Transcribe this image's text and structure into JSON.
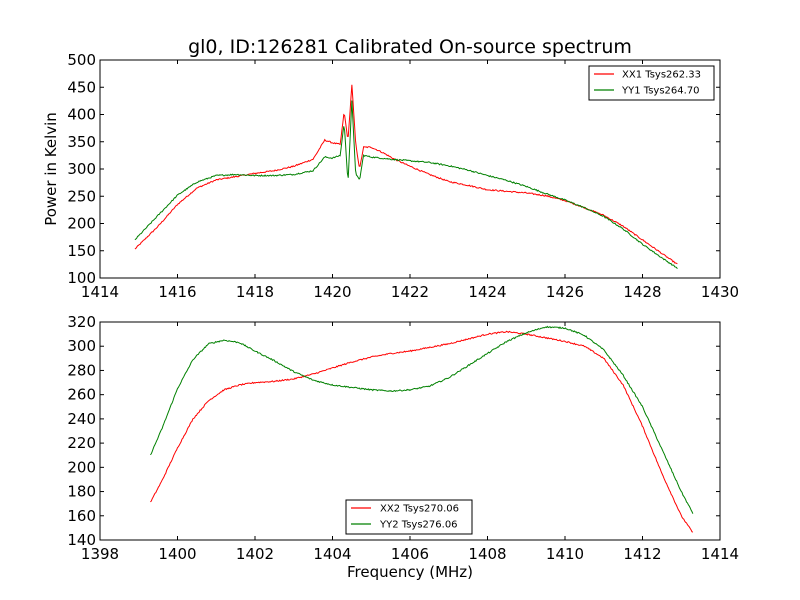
{
  "chart_data": [
    {
      "type": "line",
      "title": "gl0, ID:126281 Calibrated On-source spectrum",
      "xlabel": "",
      "ylabel": "Power in Kelvin",
      "xlim": [
        1414,
        1430
      ],
      "ylim": [
        100,
        500
      ],
      "xticks": [
        1414,
        1416,
        1418,
        1420,
        1422,
        1424,
        1426,
        1428,
        1430
      ],
      "yticks": [
        100,
        150,
        200,
        250,
        300,
        350,
        400,
        450,
        500
      ],
      "grid": false,
      "legend_position": "upper right",
      "series": [
        {
          "name": "XX1 Tsys262.33",
          "color": "#ff0000",
          "points": [
            [
              1414.9,
              153
            ],
            [
              1415.5,
              195
            ],
            [
              1416.0,
              235
            ],
            [
              1416.5,
              265
            ],
            [
              1417.0,
              280
            ],
            [
              1417.5,
              286
            ],
            [
              1418.0,
              292
            ],
            [
              1418.5,
              297
            ],
            [
              1419.0,
              305
            ],
            [
              1419.5,
              318
            ],
            [
              1419.8,
              353
            ],
            [
              1420.0,
              348
            ],
            [
              1420.2,
              345
            ],
            [
              1420.3,
              405
            ],
            [
              1420.4,
              352
            ],
            [
              1420.5,
              455
            ],
            [
              1420.6,
              345
            ],
            [
              1420.7,
              300
            ],
            [
              1420.8,
              340
            ],
            [
              1421.0,
              340
            ],
            [
              1421.3,
              330
            ],
            [
              1421.6,
              318
            ],
            [
              1422.0,
              305
            ],
            [
              1422.5,
              290
            ],
            [
              1423.0,
              277
            ],
            [
              1423.5,
              270
            ],
            [
              1424.0,
              262
            ],
            [
              1424.5,
              259
            ],
            [
              1425.0,
              256
            ],
            [
              1425.5,
              251
            ],
            [
              1426.0,
              242
            ],
            [
              1426.5,
              229
            ],
            [
              1427.0,
              215
            ],
            [
              1427.5,
              195
            ],
            [
              1428.0,
              170
            ],
            [
              1428.5,
              145
            ],
            [
              1428.9,
              125
            ]
          ]
        },
        {
          "name": "YY1 Tsys264.70",
          "color": "#008000",
          "points": [
            [
              1414.9,
              170
            ],
            [
              1415.5,
              215
            ],
            [
              1416.0,
              252
            ],
            [
              1416.5,
              276
            ],
            [
              1417.0,
              288
            ],
            [
              1417.5,
              290
            ],
            [
              1418.0,
              288
            ],
            [
              1418.5,
              288
            ],
            [
              1419.0,
              290
            ],
            [
              1419.5,
              297
            ],
            [
              1419.8,
              322
            ],
            [
              1420.0,
              320
            ],
            [
              1420.2,
              325
            ],
            [
              1420.3,
              385
            ],
            [
              1420.4,
              275
            ],
            [
              1420.5,
              425
            ],
            [
              1420.6,
              290
            ],
            [
              1420.7,
              280
            ],
            [
              1420.8,
              325
            ],
            [
              1421.0,
              322
            ],
            [
              1421.5,
              318
            ],
            [
              1422.0,
              315
            ],
            [
              1422.5,
              312
            ],
            [
              1423.0,
              306
            ],
            [
              1423.5,
              298
            ],
            [
              1424.0,
              288
            ],
            [
              1424.5,
              279
            ],
            [
              1425.0,
              268
            ],
            [
              1425.5,
              255
            ],
            [
              1426.0,
              243
            ],
            [
              1426.5,
              229
            ],
            [
              1427.0,
              213
            ],
            [
              1427.5,
              190
            ],
            [
              1428.0,
              162
            ],
            [
              1428.5,
              137
            ],
            [
              1428.9,
              118
            ]
          ]
        }
      ]
    },
    {
      "type": "line",
      "title": "",
      "xlabel": "Frequency (MHz)",
      "ylabel": "",
      "xlim": [
        1398,
        1414
      ],
      "ylim": [
        140,
        320
      ],
      "xticks": [
        1398,
        1400,
        1402,
        1404,
        1406,
        1408,
        1410,
        1412,
        1414
      ],
      "yticks": [
        140,
        160,
        180,
        200,
        220,
        240,
        260,
        280,
        300,
        320
      ],
      "grid": false,
      "legend_position": "lower center",
      "series": [
        {
          "name": "XX2 Tsys270.06",
          "color": "#ff0000",
          "points": [
            [
              1399.3,
              171
            ],
            [
              1399.6,
              189
            ],
            [
              1400.0,
              216
            ],
            [
              1400.4,
              240
            ],
            [
              1400.8,
              255
            ],
            [
              1401.2,
              264
            ],
            [
              1401.6,
              268
            ],
            [
              1402.0,
              270
            ],
            [
              1402.5,
              271
            ],
            [
              1403.0,
              273
            ],
            [
              1403.5,
              277
            ],
            [
              1404.0,
              282
            ],
            [
              1404.5,
              287
            ],
            [
              1405.0,
              291
            ],
            [
              1405.5,
              294
            ],
            [
              1406.0,
              296
            ],
            [
              1406.5,
              299
            ],
            [
              1407.0,
              302
            ],
            [
              1407.5,
              306
            ],
            [
              1408.0,
              310
            ],
            [
              1408.5,
              312
            ],
            [
              1409.0,
              310
            ],
            [
              1409.5,
              307
            ],
            [
              1410.0,
              304
            ],
            [
              1410.5,
              300
            ],
            [
              1411.0,
              290
            ],
            [
              1411.5,
              268
            ],
            [
              1412.0,
              234
            ],
            [
              1412.5,
              195
            ],
            [
              1413.0,
              160
            ],
            [
              1413.3,
              146
            ]
          ]
        },
        {
          "name": "YY2 Tsys276.06",
          "color": "#008000",
          "points": [
            [
              1399.3,
              210
            ],
            [
              1399.6,
              232
            ],
            [
              1400.0,
              265
            ],
            [
              1400.4,
              289
            ],
            [
              1400.8,
              302
            ],
            [
              1401.2,
              305
            ],
            [
              1401.6,
              303
            ],
            [
              1402.0,
              296
            ],
            [
              1402.5,
              288
            ],
            [
              1403.0,
              279
            ],
            [
              1403.5,
              272
            ],
            [
              1404.0,
              268
            ],
            [
              1404.5,
              266
            ],
            [
              1405.0,
              264
            ],
            [
              1405.5,
              263
            ],
            [
              1406.0,
              264
            ],
            [
              1406.5,
              267
            ],
            [
              1407.0,
              274
            ],
            [
              1407.5,
              284
            ],
            [
              1408.0,
              294
            ],
            [
              1408.5,
              304
            ],
            [
              1409.0,
              311
            ],
            [
              1409.5,
              316
            ],
            [
              1410.0,
              315
            ],
            [
              1410.5,
              309
            ],
            [
              1411.0,
              297
            ],
            [
              1411.5,
              276
            ],
            [
              1412.0,
              250
            ],
            [
              1412.5,
              215
            ],
            [
              1413.0,
              180
            ],
            [
              1413.3,
              162
            ]
          ]
        }
      ]
    }
  ]
}
